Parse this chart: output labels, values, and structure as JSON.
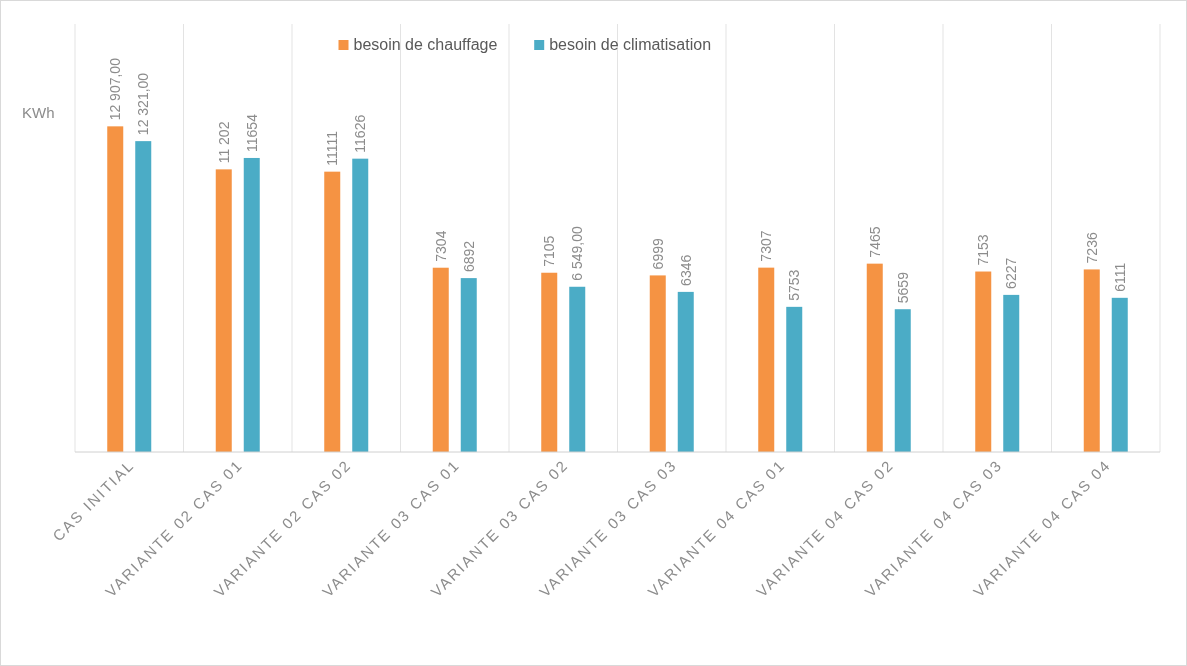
{
  "chart_data": {
    "type": "bar",
    "ylabel": "KWh",
    "categories": [
      "CAS INITIAL",
      "VARIANTE 02 CAS 01",
      "VARIANTE 02 CAS 02",
      "VARIANTE 03 CAS 01",
      "VARIANTE 03 CAS 02",
      "VARIANTE 03 CAS 03",
      "VARIANTE 04 CAS 01",
      "VARIANTE 04 CAS 02",
      "VARIANTE 04 CAS 03",
      "VARIANTE 04 CAS 04"
    ],
    "series": [
      {
        "name": "besoin de chauffage",
        "color": "#f59343",
        "values": [
          12907,
          11202,
          11111,
          7304,
          7105,
          6999,
          7307,
          7465,
          7153,
          7236
        ],
        "value_labels": [
          "12 907,00",
          "11 202",
          "11111",
          "7304",
          "7105",
          "6999",
          "7307",
          "7465",
          "7153",
          "7236"
        ]
      },
      {
        "name": "besoin de climatisation",
        "color": "#4bacc6",
        "values": [
          12321,
          11654,
          11626,
          6892,
          6549,
          6346,
          5753,
          5659,
          6227,
          6111
        ],
        "value_labels": [
          "12 321,00",
          "11654",
          "11626",
          "6892",
          "6 549,00",
          "6346",
          "5753",
          "5659",
          "6227",
          "6111"
        ]
      }
    ],
    "ylim": [
      0,
      13000
    ],
    "tick_labels": "x",
    "grid": "x",
    "legend": "top"
  }
}
